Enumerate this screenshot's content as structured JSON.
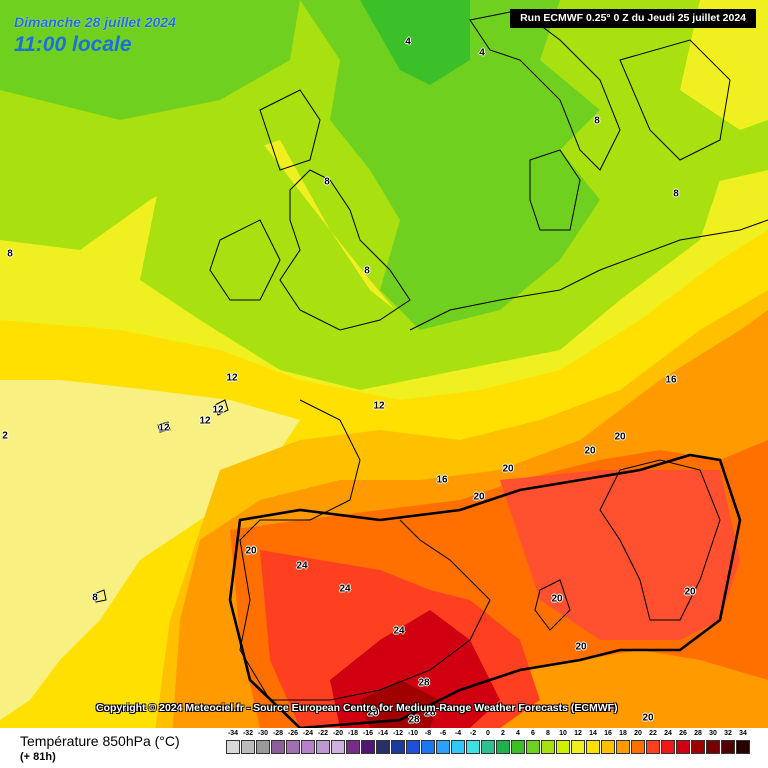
{
  "header": {
    "date": "Dimanche 28 juillet 2024",
    "time": "11:00 locale",
    "run": "Run ECMWF 0.25° 0 Z du Jeudi 25 juillet 2024"
  },
  "copyright": "Copyright © 2024 Meteociel.fr - Source European Centre for Medium-Range Weather Forecasts (ECMWF)",
  "footer": {
    "title": "Température 850hPa (°C)",
    "lead_time": "(+ 81h)"
  },
  "scale": {
    "labels": [
      "-34",
      "-32",
      "-30",
      "-28",
      "-26",
      "-24",
      "-22",
      "-20",
      "-18",
      "-16",
      "-14",
      "-12",
      "-10",
      "-8",
      "-6",
      "-4",
      "-2",
      "0",
      "2",
      "4",
      "6",
      "8",
      "10",
      "12",
      "14",
      "16",
      "18",
      "20",
      "22",
      "24",
      "26",
      "28",
      "30",
      "32",
      "34"
    ],
    "colors": [
      "#d8d8d8",
      "#bcbcbc",
      "#9a9a9a",
      "#8a5f9a",
      "#a070b0",
      "#b880c8",
      "#c098d0",
      "#d0b0e0",
      "#7a2a8a",
      "#501870",
      "#28306a",
      "#1c3c9c",
      "#1f50d8",
      "#1c78f0",
      "#2aa0ff",
      "#30c8ff",
      "#40e0e0",
      "#30c090",
      "#22b04a",
      "#3cc02a",
      "#70d020",
      "#a8e010",
      "#d0f000",
      "#f0f020",
      "#ffe000",
      "#ffc000",
      "#ff9a00",
      "#ff7000",
      "#ff4020",
      "#f01818",
      "#d00010",
      "#a00000",
      "#780000",
      "#500000",
      "#280000"
    ]
  },
  "map": {
    "isotherm_labels": [
      "4",
      "4",
      "8",
      "8",
      "8",
      "8",
      "8",
      "12",
      "12",
      "12",
      "12",
      "12",
      "2",
      "16",
      "16",
      "20",
      "20",
      "20",
      "20",
      "20",
      "20",
      "20",
      "20",
      "24",
      "24",
      "24",
      "28",
      "28",
      "28",
      "20",
      "8",
      "20"
    ]
  }
}
